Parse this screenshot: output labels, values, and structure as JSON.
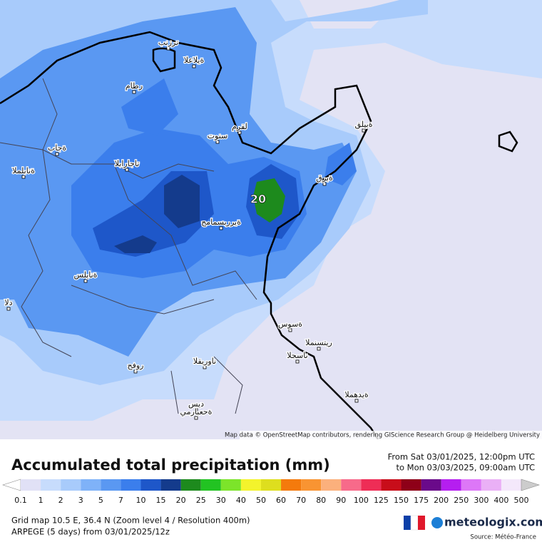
{
  "map": {
    "places": [
      "ترزنب",
      "ةيلاعلا",
      "رطام",
      "لقرم",
      "سنوت",
      "ةبيلق",
      "ةجاب",
      "ةنابلملا",
      "تاجارابلا",
      "ةبرق",
      "ةيرربسمامح",
      "ةنايلس",
      "دلا",
      "ةسوس",
      "ريتسنملا",
      "ناسجلا",
      "ناوريقلا",
      "ةيدهملا",
      "روفح",
      "ديس",
      "ةحعبارمي"
    ],
    "max_label": "20",
    "attribution": "Map data © OpenStreetMap contributors, rendering GIScience Research Group @ Heidelberg University"
  },
  "legend": {
    "title": "Accumulated total precipitation (mm)",
    "period_from": "From Sat 03/01/2025, 12:00pm UTC",
    "period_to": "to Mon 03/03/2025, 09:00am UTC",
    "levels": [
      0.1,
      1,
      2,
      3,
      5,
      7,
      10,
      15,
      20,
      25,
      30,
      40,
      50,
      60,
      70,
      80,
      90,
      100,
      125,
      150,
      175,
      200,
      250,
      300,
      400,
      500
    ],
    "colors": [
      "#ffffff",
      "#e1e1f6",
      "#c7dcfc",
      "#a8cbfb",
      "#7fb2f8",
      "#5a98f2",
      "#3b7eec",
      "#1e57c9",
      "#143b8c",
      "#1d8a1d",
      "#22c322",
      "#7ce42a",
      "#f3f32c",
      "#dede1e",
      "#f47a0c",
      "#f99432",
      "#fbb07c",
      "#f76a8a",
      "#ee2d56",
      "#c80d1a",
      "#8e0018",
      "#6a0a8a",
      "#b51ef0",
      "#dd77f7",
      "#eab0f6",
      "#f4e8fb",
      "#cccccc"
    ]
  },
  "footer": {
    "grid": "Grid map 10.5 E, 36.4 N (Zoom level 4 / Resolution 400m)",
    "model": "ARPEGE (5 days) from 03/01/2025/12z",
    "brand": "meteologix.com",
    "source": "Source: Météo-France"
  }
}
